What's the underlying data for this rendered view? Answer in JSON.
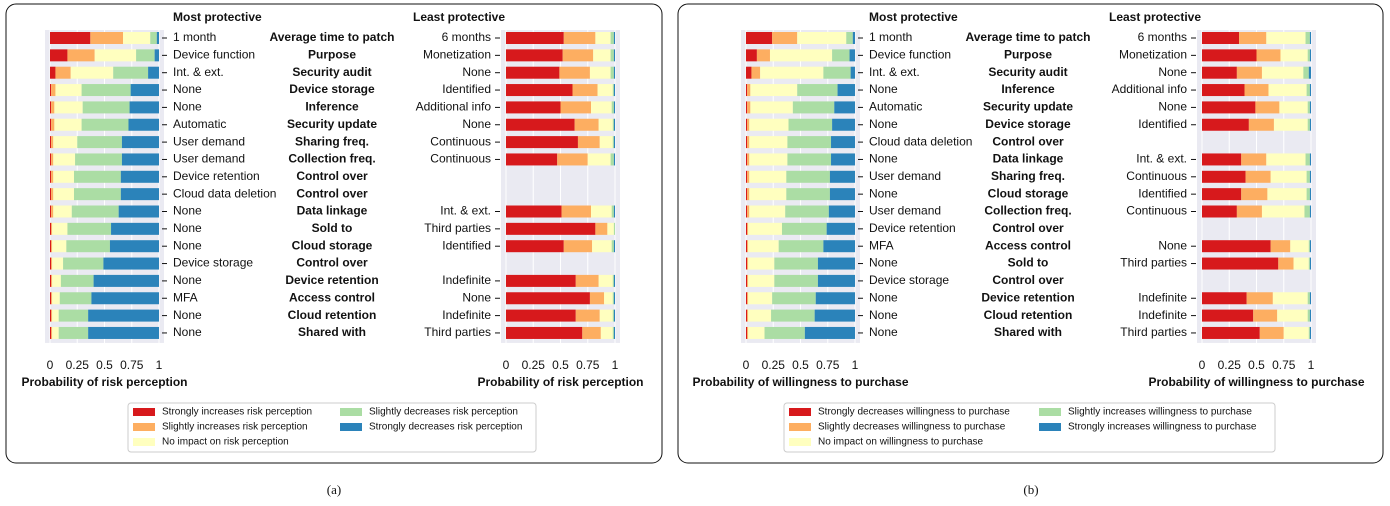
{
  "chart_data": [
    {
      "type": "bar",
      "orientation": "horizontal",
      "stacked": true,
      "caption": "(a)",
      "left_title": "Most protective",
      "right_title": "Least protective",
      "categories": [
        "Average time to patch",
        "Purpose",
        "Security audit",
        "Device storage",
        "Inference",
        "Security update",
        "Sharing freq.",
        "Collection freq.",
        "Control over",
        "Control over",
        "Data linkage",
        "Sold to",
        "Cloud storage",
        "Control over",
        "Device retention",
        "Access control",
        "Cloud retention",
        "Shared with"
      ],
      "left_labels": [
        "1 month",
        "Device function",
        "Int. & ext.",
        "None",
        "None",
        "Automatic",
        "User demand",
        "User demand",
        "Device retention",
        "Cloud data deletion",
        "None",
        "None",
        "None",
        "Device storage",
        "None",
        "MFA",
        "None",
        "None"
      ],
      "right_labels": [
        "6 months",
        "Monetization",
        "None",
        "Identified",
        "Additional info",
        "None",
        "Continuous",
        "Continuous",
        null,
        null,
        "Int. & ext.",
        "Third parties",
        "Identified",
        null,
        "Indefinite",
        "None",
        "Indefinite",
        "Third parties"
      ],
      "xlim": [
        0,
        1
      ],
      "xticks": [
        0,
        0.25,
        0.5,
        0.75,
        1
      ],
      "grid": true,
      "xlabel": "Probability of risk perception",
      "series": [
        {
          "name": "Strongly increases risk perception",
          "color": "#d7191c",
          "left": [
            0.37,
            0.16,
            0.05,
            0.01,
            0.01,
            0.01,
            0.01,
            0.01,
            0.01,
            0.01,
            0.01,
            0.01,
            0.01,
            0.01,
            0.01,
            0.01,
            0.01,
            0.01
          ],
          "right": [
            0.53,
            0.52,
            0.49,
            0.61,
            0.5,
            0.63,
            0.66,
            0.47,
            null,
            null,
            0.51,
            0.82,
            0.53,
            null,
            0.64,
            0.77,
            0.64,
            0.7
          ]
        },
        {
          "name": "Slightly increases risk perception",
          "color": "#fdae61",
          "left": [
            0.3,
            0.25,
            0.14,
            0.04,
            0.03,
            0.03,
            0.02,
            0.02,
            0.02,
            0.02,
            0.02,
            0.01,
            0.01,
            0.01,
            0.01,
            0.01,
            0.01,
            0.01
          ],
          "right": [
            0.29,
            0.28,
            0.28,
            0.23,
            0.28,
            0.22,
            0.2,
            0.28,
            null,
            null,
            0.27,
            0.11,
            0.26,
            null,
            0.21,
            0.13,
            0.22,
            0.17
          ]
        },
        {
          "name": "No impact on risk perception",
          "color": "#ffffbf",
          "left": [
            0.25,
            0.38,
            0.39,
            0.24,
            0.26,
            0.25,
            0.22,
            0.2,
            0.19,
            0.19,
            0.17,
            0.14,
            0.13,
            0.1,
            0.08,
            0.07,
            0.06,
            0.06
          ],
          "right": [
            0.14,
            0.16,
            0.19,
            0.14,
            0.19,
            0.13,
            0.12,
            0.21,
            null,
            null,
            0.19,
            0.06,
            0.18,
            null,
            0.13,
            0.08,
            0.12,
            0.11
          ]
        },
        {
          "name": "Slightly decreases risk perception",
          "color": "#abdda4",
          "left": [
            0.06,
            0.17,
            0.32,
            0.45,
            0.43,
            0.43,
            0.41,
            0.43,
            0.43,
            0.43,
            0.43,
            0.4,
            0.4,
            0.37,
            0.3,
            0.29,
            0.27,
            0.27
          ],
          "right": [
            0.03,
            0.03,
            0.03,
            0.01,
            0.02,
            0.01,
            0.01,
            0.03,
            null,
            null,
            0.02,
            0.01,
            0.02,
            null,
            0.01,
            0.01,
            0.01,
            0.01
          ]
        },
        {
          "name": "Strongly decreases risk perception",
          "color": "#2b83ba",
          "left": [
            0.02,
            0.04,
            0.1,
            0.26,
            0.27,
            0.28,
            0.34,
            0.34,
            0.35,
            0.35,
            0.37,
            0.44,
            0.45,
            0.51,
            0.6,
            0.62,
            0.65,
            0.65
          ],
          "right": [
            0.01,
            0.01,
            0.01,
            0.01,
            0.01,
            0.01,
            0.01,
            0.01,
            null,
            null,
            0.01,
            0,
            0.01,
            null,
            0.01,
            0.01,
            0.01,
            0.01
          ]
        }
      ]
    },
    {
      "type": "bar",
      "orientation": "horizontal",
      "stacked": true,
      "caption": "(b)",
      "left_title": "Most protective",
      "right_title": "Least protective",
      "categories": [
        "Average time to patch",
        "Purpose",
        "Security audit",
        "Inference",
        "Security update",
        "Device storage",
        "Control over",
        "Data linkage",
        "Sharing freq.",
        "Cloud storage",
        "Collection freq.",
        "Control over",
        "Access control",
        "Sold to",
        "Control over",
        "Device retention",
        "Cloud retention",
        "Shared with"
      ],
      "left_labels": [
        "1 month",
        "Device function",
        "Int. & ext.",
        "None",
        "Automatic",
        "None",
        "Cloud data deletion",
        "None",
        "User demand",
        "None",
        "User demand",
        "Device retention",
        "MFA",
        "None",
        "Device storage",
        "None",
        "None",
        "None"
      ],
      "right_labels": [
        "6 months",
        "Monetization",
        "None",
        "Additional info",
        "None",
        "Identified",
        null,
        "Int. & ext.",
        "Continuous",
        "Identified",
        "Continuous",
        null,
        "None",
        "Third parties",
        null,
        "Indefinite",
        "Indefinite",
        "Third parties"
      ],
      "xlim": [
        0,
        1
      ],
      "xticks": [
        0,
        0.25,
        0.5,
        0.75,
        1
      ],
      "grid": true,
      "xlabel": "Probability of willingness to purchase",
      "series": [
        {
          "name": "Strongly decreases willingness to purchase",
          "color": "#d7191c",
          "left": [
            0.24,
            0.1,
            0.05,
            0.01,
            0.01,
            0.01,
            0.01,
            0.01,
            0.01,
            0.01,
            0.01,
            0.01,
            0.01,
            0.01,
            0.01,
            0.01,
            0.01,
            0.01
          ],
          "right": [
            0.34,
            0.5,
            0.32,
            0.39,
            0.49,
            0.43,
            null,
            0.36,
            0.4,
            0.36,
            0.32,
            null,
            0.63,
            0.7,
            null,
            0.41,
            0.47,
            0.53
          ]
        },
        {
          "name": "Slightly decreases willingness to purchase",
          "color": "#fdae61",
          "left": [
            0.23,
            0.12,
            0.08,
            0.03,
            0.03,
            0.02,
            0.02,
            0.02,
            0.02,
            0.02,
            0.02,
            0.01,
            0.01,
            0.01,
            0.01,
            0.01,
            0.01,
            0.01
          ],
          "right": [
            0.25,
            0.22,
            0.23,
            0.22,
            0.22,
            0.23,
            null,
            0.23,
            0.23,
            0.24,
            0.23,
            null,
            0.18,
            0.14,
            null,
            0.24,
            0.22,
            0.22
          ]
        },
        {
          "name": "No impact on willingness to purchase",
          "color": "#ffffbf",
          "left": [
            0.45,
            0.57,
            0.58,
            0.43,
            0.39,
            0.36,
            0.35,
            0.35,
            0.34,
            0.34,
            0.33,
            0.31,
            0.28,
            0.24,
            0.24,
            0.22,
            0.21,
            0.15
          ],
          "right": [
            0.36,
            0.25,
            0.38,
            0.35,
            0.26,
            0.31,
            null,
            0.36,
            0.33,
            0.36,
            0.39,
            null,
            0.17,
            0.14,
            null,
            0.32,
            0.28,
            0.23
          ]
        },
        {
          "name": "Slightly increases willingness to purchase",
          "color": "#abdda4",
          "left": [
            0.06,
            0.16,
            0.25,
            0.37,
            0.38,
            0.4,
            0.4,
            0.4,
            0.4,
            0.4,
            0.4,
            0.41,
            0.41,
            0.4,
            0.4,
            0.4,
            0.4,
            0.37
          ],
          "right": [
            0.04,
            0.02,
            0.05,
            0.03,
            0.02,
            0.02,
            null,
            0.04,
            0.03,
            0.03,
            0.05,
            null,
            0.01,
            0.01,
            null,
            0.02,
            0.02,
            0.01
          ]
        },
        {
          "name": "Strongly increases willingness to purchase",
          "color": "#2b83ba",
          "left": [
            0.02,
            0.05,
            0.04,
            0.16,
            0.19,
            0.21,
            0.22,
            0.22,
            0.23,
            0.23,
            0.24,
            0.26,
            0.29,
            0.34,
            0.34,
            0.36,
            0.37,
            0.46
          ],
          "right": [
            0.01,
            0.01,
            0.02,
            0.01,
            0.01,
            0.01,
            null,
            0.01,
            0.01,
            0.01,
            0.01,
            null,
            0.01,
            0.01,
            null,
            0.01,
            0.01,
            0.01
          ]
        }
      ]
    }
  ]
}
